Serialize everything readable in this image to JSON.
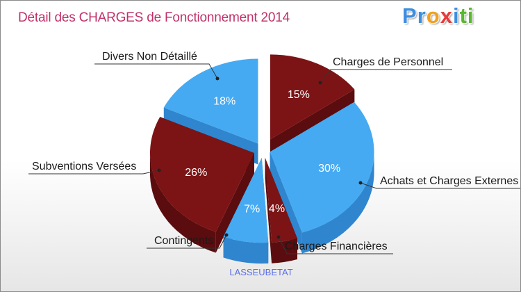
{
  "header": {
    "title": "Détail des CHARGES de Fonctionnement 2014",
    "logo": "Proxiti"
  },
  "caption": "LASSEUBETAT",
  "colors": {
    "blue_top": "#45aaf2",
    "blue_side": "#2f86cf",
    "red_top": "#7c1416",
    "red_side": "#5a0c0e",
    "title": "#c0306a"
  },
  "chart_data": {
    "type": "pie",
    "title": "Détail des CHARGES de Fonctionnement 2014",
    "subtitle": "LASSEUBETAT",
    "unit": "%",
    "slices": [
      {
        "label": "Charges de Personnel",
        "value": 15,
        "display": "15%",
        "color": "red"
      },
      {
        "label": "Achats et Charges Externes",
        "value": 30,
        "display": "30%",
        "color": "blue"
      },
      {
        "label": "Charges Financières",
        "value": 4,
        "display": "4%",
        "color": "red"
      },
      {
        "label": "Contingents",
        "value": 7,
        "display": "7%",
        "color": "blue"
      },
      {
        "label": "Subventions Versées",
        "value": 26,
        "display": "26%",
        "color": "red"
      },
      {
        "label": "Divers Non Détaillé",
        "value": 18,
        "display": "18%",
        "color": "blue"
      }
    ]
  }
}
